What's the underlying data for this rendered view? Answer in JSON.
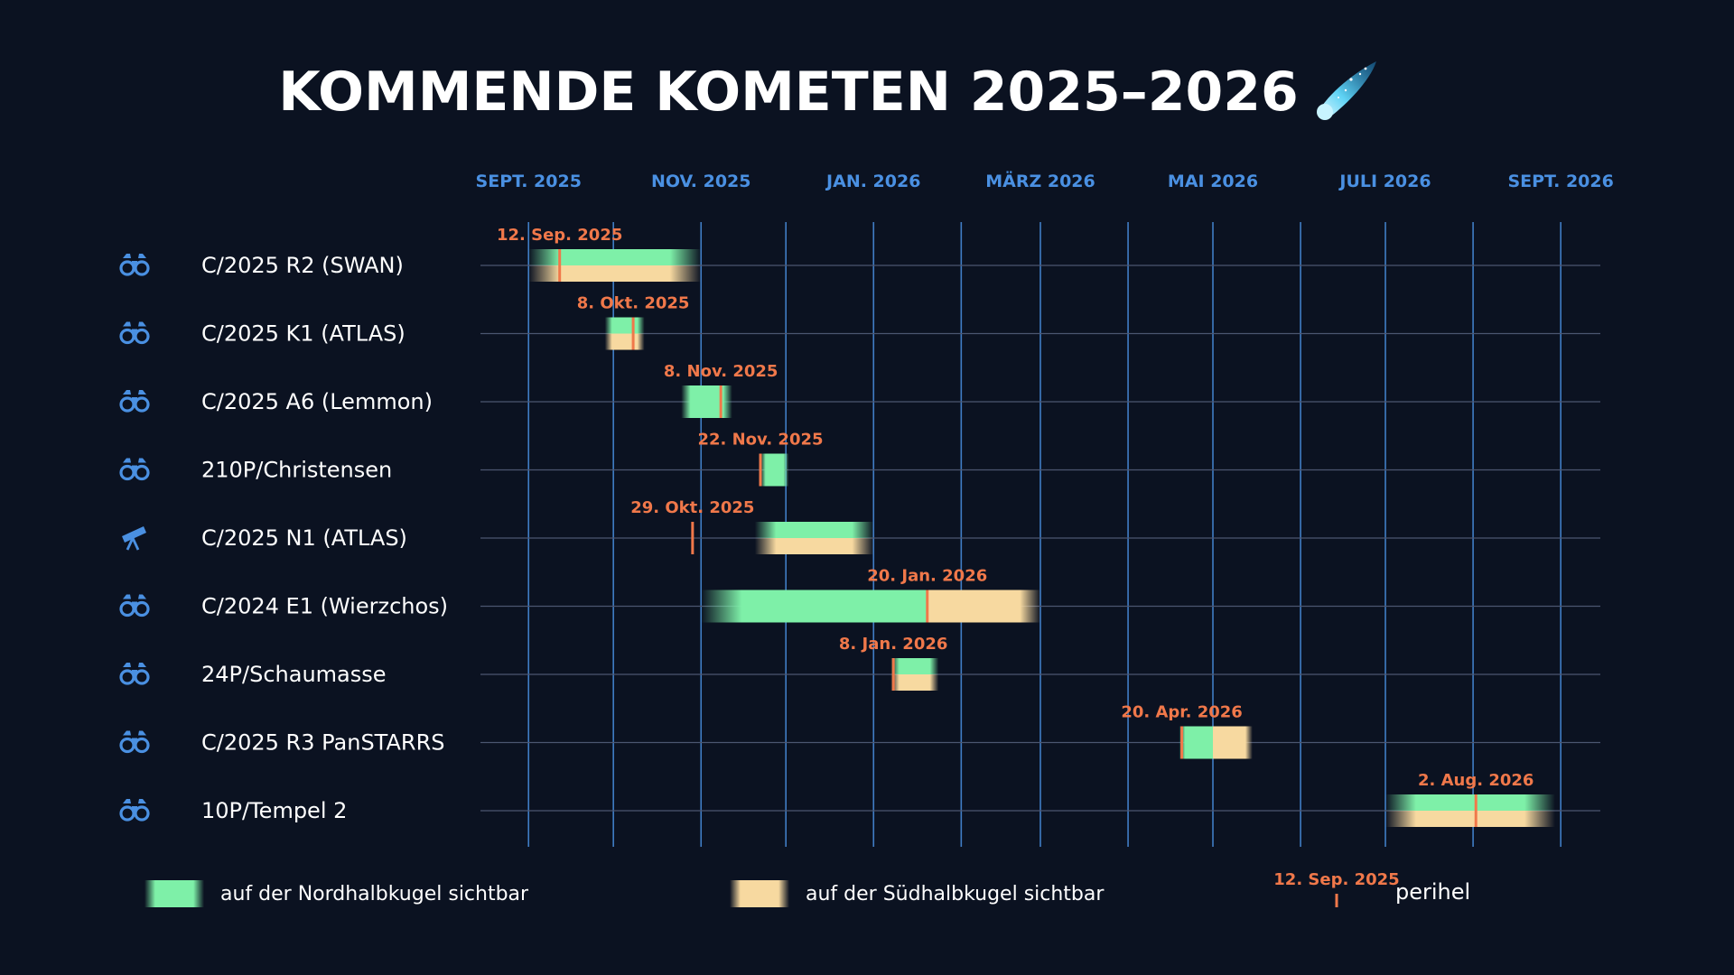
{
  "title": "KOMMENDE KOMETEN 2025–2026",
  "title_icon": "comet-icon",
  "colors": {
    "background": "#0b1221",
    "axis_blue": "#4a90e2",
    "north_green": "#7ef0a8",
    "south_yellow": "#f7d9a0",
    "perihelion_orange": "#f0784a"
  },
  "chart_data": {
    "type": "gantt",
    "x_axis_type": "date",
    "x_range": [
      "2025-08-15",
      "2026-09-15"
    ],
    "x_ticks": [
      {
        "date": "2025-09-01",
        "label": "SEPT. 2025"
      },
      {
        "date": "2025-11-01",
        "label": "NOV. 2025"
      },
      {
        "date": "2026-01-01",
        "label": "JAN. 2026"
      },
      {
        "date": "2026-03-01",
        "label": "MÄRZ 2026"
      },
      {
        "date": "2026-05-01",
        "label": "MAI 2026"
      },
      {
        "date": "2026-07-01",
        "label": "JULI 2026"
      },
      {
        "date": "2026-09-01",
        "label": "SEPT. 2026"
      }
    ],
    "grid_dates": [
      "2025-09-01",
      "2025-10-01",
      "2025-11-01",
      "2025-12-01",
      "2026-01-01",
      "2026-02-01",
      "2026-03-01",
      "2026-04-01",
      "2026-05-01",
      "2026-06-01",
      "2026-07-01",
      "2026-08-01",
      "2026-09-01"
    ],
    "grid": true,
    "legend_position": "bottom",
    "rows": [
      {
        "name": "C/2025 R2 (SWAN)",
        "icon": "binoculars-icon",
        "perihelion": "2025-09-12",
        "perihelion_label": "12. Sep. 2025",
        "north": [
          "2025-09-01",
          "2025-11-01"
        ],
        "south": [
          "2025-09-01",
          "2025-11-01"
        ]
      },
      {
        "name": "C/2025 K1 (ATLAS)",
        "icon": "binoculars-icon",
        "perihelion": "2025-10-08",
        "perihelion_label": "8. Okt. 2025",
        "north": [
          "2025-09-28",
          "2025-10-12"
        ],
        "south": [
          "2025-09-28",
          "2025-10-12"
        ]
      },
      {
        "name": "C/2025 A6 (Lemmon)",
        "icon": "binoculars-icon",
        "perihelion": "2025-11-08",
        "perihelion_label": "8. Nov. 2025",
        "north": [
          "2025-10-25",
          "2025-11-12"
        ],
        "south": null
      },
      {
        "name": "210P/Christensen",
        "icon": "binoculars-icon",
        "perihelion": "2025-11-22",
        "perihelion_label": "22. Nov. 2025",
        "north": [
          "2025-11-22",
          "2025-12-02"
        ],
        "south": null
      },
      {
        "name": "C/2025 N1 (ATLAS)",
        "icon": "telescope-icon",
        "perihelion": "2025-10-29",
        "perihelion_label": "29. Okt. 2025",
        "north": [
          "2025-11-20",
          "2026-01-01"
        ],
        "south": [
          "2025-11-20",
          "2026-01-01"
        ]
      },
      {
        "name": "C/2024 E1 (Wierzchos)",
        "icon": "binoculars-icon",
        "perihelion": "2026-01-20",
        "perihelion_label": "20. Jan. 2026",
        "north": [
          "2025-11-01",
          "2026-01-20"
        ],
        "south": [
          "2026-01-20",
          "2026-03-01"
        ]
      },
      {
        "name": "24P/Schaumasse",
        "icon": "binoculars-icon",
        "perihelion": "2026-01-08",
        "perihelion_label": "8. Jan. 2026",
        "north": [
          "2026-01-07",
          "2026-01-24"
        ],
        "south": [
          "2026-01-07",
          "2026-01-24"
        ]
      },
      {
        "name": "C/2025 R3 PanSTARRS",
        "icon": "binoculars-icon",
        "perihelion": "2026-04-20",
        "perihelion_label": "20. Apr. 2026",
        "north": [
          "2026-04-19",
          "2026-05-01"
        ],
        "south": [
          "2026-05-01",
          "2026-05-15"
        ]
      },
      {
        "name": "10P/Tempel 2",
        "icon": "binoculars-icon",
        "perihelion": "2026-08-02",
        "perihelion_label": "2. Aug. 2026",
        "north": [
          "2026-07-01",
          "2026-08-30"
        ],
        "south": [
          "2026-07-01",
          "2026-08-30"
        ]
      }
    ]
  },
  "legend": {
    "north": "auf der Nordhalbkugel sichtbar",
    "south": "auf der Südhalbkugel sichtbar",
    "perihelion_example_label": "12. Sep. 2025",
    "perihelion_text": "perihel"
  }
}
